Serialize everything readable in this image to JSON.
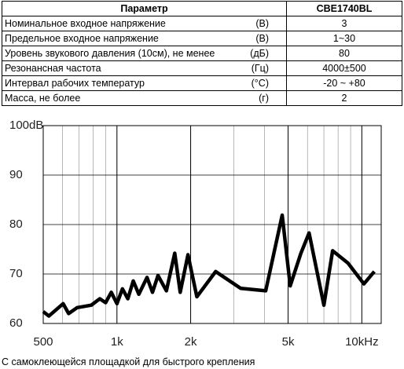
{
  "table": {
    "header": [
      "Параметр",
      "CBE1740BL"
    ],
    "rows": [
      [
        "Номинальное входное напряжение",
        "(В)",
        "3"
      ],
      [
        "Предельное входное напряжение",
        "(В)",
        "1~30"
      ],
      [
        "Уровень звукового давления (10см), не менее",
        "(дБ)",
        "80"
      ],
      [
        "Резонансная частота",
        "(Гц)",
        "4000±500"
      ],
      [
        "Интервал рабочих температур",
        "(°C)",
        "-20 ~ +80"
      ],
      [
        "Масса, не более",
        "(г)",
        "2"
      ]
    ]
  },
  "chart_data": {
    "type": "line",
    "x": [
      500,
      527,
      603,
      635,
      688,
      786,
      851,
      899,
      948,
      1000,
      1053,
      1108,
      1166,
      1228,
      1327,
      1397,
      1471,
      1592,
      1722,
      1813,
      1950,
      2120,
      2530,
      3200,
      4050,
      4730,
      5100,
      5630,
      6090,
      7000,
      7600,
      8780,
      10200,
      11250
    ],
    "series": [
      {
        "name": "SPL",
        "color": "#000000",
        "values": [
          62.4,
          61.5,
          64,
          62,
          63.2,
          63.7,
          65,
          64.2,
          66.3,
          64,
          67,
          65,
          68.6,
          65.9,
          69.3,
          66.3,
          69.7,
          66.6,
          74.2,
          66.3,
          73.9,
          65.4,
          70.5,
          67.1,
          66.6,
          81.9,
          67.6,
          74.1,
          78.3,
          63.7,
          74.7,
          72.2,
          68,
          70.5
        ]
      }
    ],
    "xlim": [
      500,
      12000
    ],
    "ylim": [
      60,
      100
    ],
    "log_x": true,
    "xticks": [
      500,
      {
        "value": 1000,
        "label": "1k"
      },
      {
        "value": 2000,
        "label": "2k"
      },
      {
        "value": 5000,
        "label": "5k"
      },
      {
        "value": 10000,
        "label": "10kHz"
      }
    ],
    "yticks": [
      {
        "value": 100,
        "label": "100dB"
      },
      90,
      80,
      70,
      60
    ],
    "grid": true
  },
  "caption": "С самоклеющейся площадкой для быстрого крепления"
}
